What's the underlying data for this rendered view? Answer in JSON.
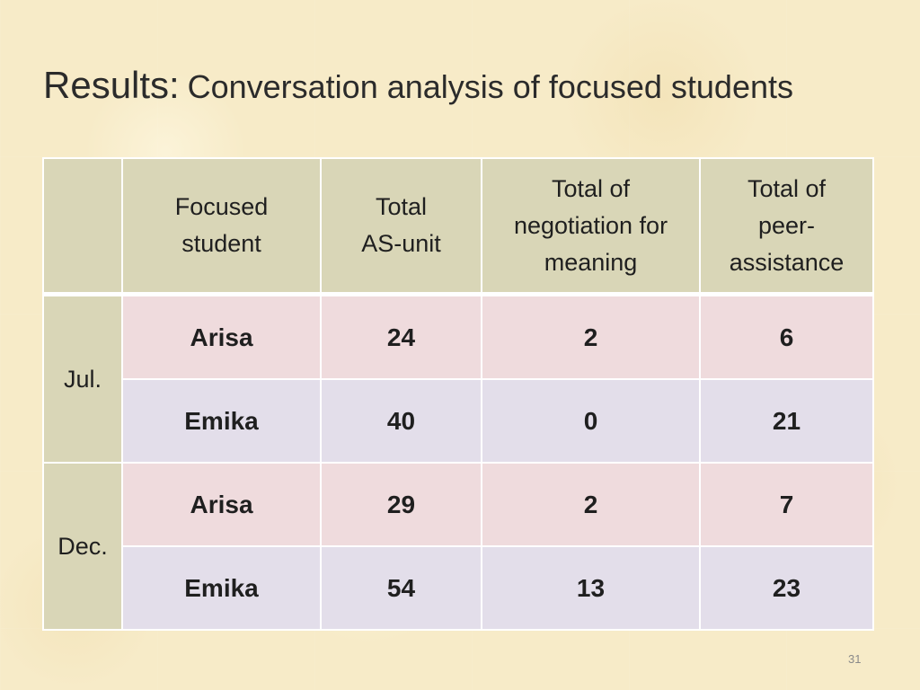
{
  "slide": {
    "title_main": "Results:",
    "title_sub": "Conversation analysis of focused students",
    "page_number": "31"
  },
  "table": {
    "headers": [
      "",
      "Focused student",
      "Total AS-unit",
      "Total of negotiation for meaning",
      "Total of peer-assistance"
    ],
    "header_lines": {
      "focused": [
        "Focused",
        "student"
      ],
      "as_unit": [
        "Total",
        "AS-unit"
      ],
      "negotiation": [
        "Total of",
        "negotiation for",
        "meaning"
      ],
      "peer": [
        "Total of",
        "peer-",
        "assistance"
      ]
    },
    "groups": [
      {
        "period": "Jul.",
        "rows": [
          {
            "student": "Arisa",
            "as_unit": "24",
            "negotiation": "2",
            "peer_assistance": "6"
          },
          {
            "student": "Emika",
            "as_unit": "40",
            "negotiation": "0",
            "peer_assistance": "21"
          }
        ]
      },
      {
        "period": "Dec.",
        "rows": [
          {
            "student": "Arisa",
            "as_unit": "29",
            "negotiation": "2",
            "peer_assistance": "7"
          },
          {
            "student": "Emika",
            "as_unit": "54",
            "negotiation": "13",
            "peer_assistance": "23"
          }
        ]
      }
    ]
  },
  "colors": {
    "background": "#f7ebc8",
    "header_fill": "#d9d6b7",
    "row_pink": "#efdbdd",
    "row_lavender": "#e3deea",
    "text": "#1f1f1f"
  }
}
